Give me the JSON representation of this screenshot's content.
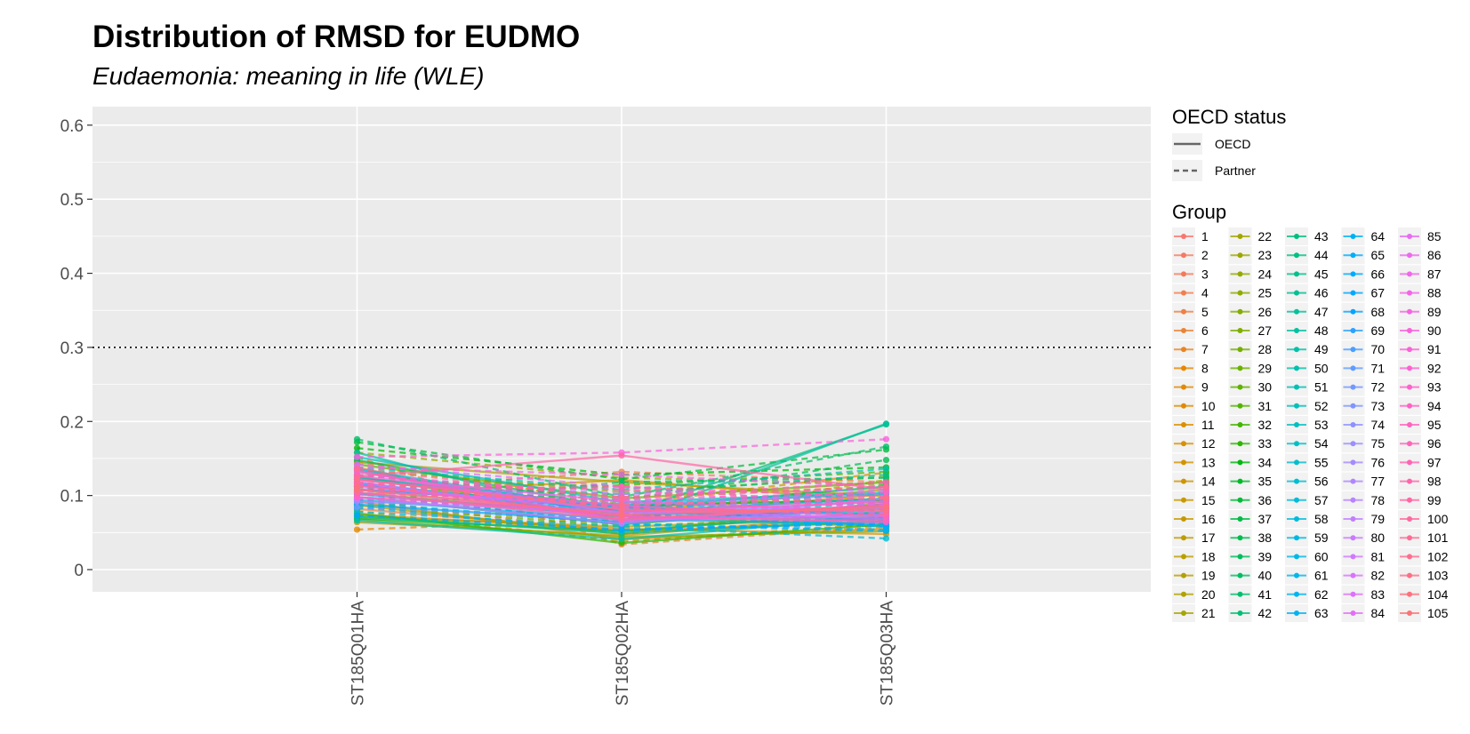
{
  "chart_data": {
    "type": "line",
    "title": "Distribution of RMSD for EUDMO",
    "subtitle": "Eudaemonia: meaning in life (WLE)",
    "xlabel": "",
    "ylabel": "",
    "categories": [
      "ST185Q01HA",
      "ST185Q02HA",
      "ST185Q03HA"
    ],
    "ylim": [
      -0.03,
      0.625
    ],
    "yticks": [
      0,
      0.1,
      0.2,
      0.3,
      0.4,
      0.5,
      0.6
    ],
    "ytick_labels": [
      "0",
      "0.1",
      "0.2",
      "0.3",
      "0.4",
      "0.5",
      "0.6"
    ],
    "reference_line": {
      "y": 0.3,
      "style": "dotted"
    },
    "grid": true,
    "background": "#EBEBEB",
    "legend_placement": "right",
    "legend": {
      "linetype_title": "OECD status",
      "linetype_entries": [
        {
          "label": "OECD",
          "style": "solid"
        },
        {
          "label": "Partner",
          "style": "dashed"
        }
      ],
      "group_title": "Group",
      "group_count": 105
    },
    "series": [
      {
        "name": "1",
        "status": "OECD",
        "values": [
          0.125,
          0.085,
          0.095
        ]
      },
      {
        "name": "2",
        "status": "Partner",
        "values": [
          0.095,
          0.048,
          0.072
        ]
      },
      {
        "name": "3",
        "status": "OECD",
        "values": [
          0.138,
          0.062,
          0.088
        ]
      },
      {
        "name": "4",
        "status": "Partner",
        "values": [
          0.108,
          0.132,
          0.118
        ]
      },
      {
        "name": "5",
        "status": "OECD",
        "values": [
          0.082,
          0.052,
          0.064
        ]
      },
      {
        "name": "6",
        "status": "Partner",
        "values": [
          0.152,
          0.034,
          0.058
        ]
      },
      {
        "name": "7",
        "status": "OECD",
        "values": [
          0.118,
          0.071,
          0.102
        ]
      },
      {
        "name": "8",
        "status": "Partner",
        "values": [
          0.054,
          0.068,
          0.081
        ]
      },
      {
        "name": "9",
        "status": "OECD",
        "values": [
          0.092,
          0.041,
          0.055
        ]
      },
      {
        "name": "10",
        "status": "Partner",
        "values": [
          0.128,
          0.098,
          0.112
        ]
      },
      {
        "name": "11",
        "status": "OECD",
        "values": [
          0.074,
          0.055,
          0.048
        ]
      },
      {
        "name": "12",
        "status": "Partner",
        "values": [
          0.146,
          0.088,
          0.131
        ]
      },
      {
        "name": "13",
        "status": "OECD",
        "values": [
          0.101,
          0.121,
          0.092
        ]
      },
      {
        "name": "14",
        "status": "Partner",
        "values": [
          0.088,
          0.062,
          0.098
        ]
      },
      {
        "name": "15",
        "status": "OECD",
        "values": [
          0.064,
          0.046,
          0.074
        ]
      },
      {
        "name": "16",
        "status": "Partner",
        "values": [
          0.122,
          0.112,
          0.085
        ]
      },
      {
        "name": "17",
        "status": "OECD",
        "values": [
          0.132,
          0.078,
          0.108
        ]
      },
      {
        "name": "18",
        "status": "Partner",
        "values": [
          0.079,
          0.038,
          0.062
        ]
      },
      {
        "name": "19",
        "status": "OECD",
        "values": [
          0.145,
          0.118,
          0.099
        ]
      },
      {
        "name": "20",
        "status": "Partner",
        "values": [
          0.098,
          0.066,
          0.121
        ]
      },
      {
        "name": "21",
        "status": "OECD",
        "values": [
          0.071,
          0.058,
          0.069
        ]
      },
      {
        "name": "22",
        "status": "Partner",
        "values": [
          0.116,
          0.092,
          0.078
        ]
      },
      {
        "name": "23",
        "status": "OECD",
        "values": [
          0.087,
          0.048,
          0.091
        ]
      },
      {
        "name": "24",
        "status": "Partner",
        "values": [
          0.158,
          0.124,
          0.115
        ]
      },
      {
        "name": "25",
        "status": "OECD",
        "values": [
          0.104,
          0.072,
          0.058
        ]
      },
      {
        "name": "26",
        "status": "Partner",
        "values": [
          0.135,
          0.105,
          0.125
        ]
      },
      {
        "name": "27",
        "status": "OECD",
        "values": [
          0.068,
          0.044,
          0.052
        ]
      },
      {
        "name": "28",
        "status": "Partner",
        "values": [
          0.112,
          0.081,
          0.104
        ]
      },
      {
        "name": "29",
        "status": "OECD",
        "values": [
          0.142,
          0.096,
          0.118
        ]
      },
      {
        "name": "30",
        "status": "Partner",
        "values": [
          0.085,
          0.059,
          0.071
        ]
      },
      {
        "name": "31",
        "status": "OECD",
        "values": [
          0.126,
          0.068,
          0.084
        ]
      },
      {
        "name": "32",
        "status": "Partner",
        "values": [
          0.094,
          0.114,
          0.132
        ]
      },
      {
        "name": "33",
        "status": "OECD",
        "values": [
          0.076,
          0.036,
          0.061
        ]
      },
      {
        "name": "34",
        "status": "Partner",
        "values": [
          0.164,
          0.128,
          0.138
        ]
      },
      {
        "name": "35",
        "status": "OECD",
        "values": [
          0.108,
          0.087,
          0.094
        ]
      },
      {
        "name": "36",
        "status": "Partner",
        "values": [
          0.172,
          0.122,
          0.162
        ]
      },
      {
        "name": "37",
        "status": "OECD",
        "values": [
          0.069,
          0.052,
          0.078
        ]
      },
      {
        "name": "38",
        "status": "Partner",
        "values": [
          0.128,
          0.094,
          0.148
        ]
      },
      {
        "name": "39",
        "status": "OECD",
        "values": [
          0.148,
          0.082,
          0.112
        ]
      },
      {
        "name": "40",
        "status": "Partner",
        "values": [
          0.176,
          0.098,
          0.166
        ]
      },
      {
        "name": "41",
        "status": "OECD",
        "values": [
          0.098,
          0.061,
          0.088
        ]
      },
      {
        "name": "42",
        "status": "Partner",
        "values": [
          0.082,
          0.118,
          0.124
        ]
      },
      {
        "name": "43",
        "status": "OECD",
        "values": [
          0.134,
          0.074,
          0.196
        ]
      },
      {
        "name": "44",
        "status": "Partner",
        "values": [
          0.112,
          0.102,
          0.128
        ]
      },
      {
        "name": "45",
        "status": "OECD",
        "values": [
          0.072,
          0.049,
          0.066
        ]
      },
      {
        "name": "46",
        "status": "Partner",
        "values": [
          0.122,
          0.088,
          0.102
        ]
      },
      {
        "name": "47",
        "status": "OECD",
        "values": [
          0.158,
          0.065,
          0.197
        ]
      },
      {
        "name": "48",
        "status": "Partner",
        "values": [
          0.096,
          0.076,
          0.114
        ]
      },
      {
        "name": "49",
        "status": "OECD",
        "values": [
          0.066,
          0.041,
          0.072
        ]
      },
      {
        "name": "50",
        "status": "Partner",
        "values": [
          0.138,
          0.108,
          0.136
        ]
      },
      {
        "name": "51",
        "status": "OECD",
        "values": [
          0.114,
          0.082,
          0.076
        ]
      },
      {
        "name": "52",
        "status": "Partner",
        "values": [
          0.086,
          0.066,
          0.092
        ]
      },
      {
        "name": "53",
        "status": "OECD",
        "values": [
          0.152,
          0.091,
          0.104
        ]
      },
      {
        "name": "54",
        "status": "Partner",
        "values": [
          0.102,
          0.072,
          0.068
        ]
      },
      {
        "name": "55",
        "status": "OECD",
        "values": [
          0.124,
          0.085,
          0.058
        ]
      },
      {
        "name": "56",
        "status": "Partner",
        "values": [
          0.078,
          0.058,
          0.042
        ]
      },
      {
        "name": "57",
        "status": "OECD",
        "values": [
          0.136,
          0.078,
          0.096
        ]
      },
      {
        "name": "58",
        "status": "Partner",
        "values": [
          0.091,
          0.062,
          0.054
        ]
      },
      {
        "name": "59",
        "status": "OECD",
        "values": [
          0.108,
          0.086,
          0.064
        ]
      },
      {
        "name": "60",
        "status": "Partner",
        "values": [
          0.118,
          0.074,
          0.082
        ]
      },
      {
        "name": "61",
        "status": "OECD",
        "values": [
          0.094,
          0.068,
          0.061
        ]
      },
      {
        "name": "62",
        "status": "Partner",
        "values": [
          0.084,
          0.052,
          0.066
        ]
      },
      {
        "name": "63",
        "status": "OECD",
        "values": [
          0.122,
          0.082,
          0.074
        ]
      },
      {
        "name": "64",
        "status": "Partner",
        "values": [
          0.104,
          0.061,
          0.052
        ]
      },
      {
        "name": "65",
        "status": "OECD",
        "values": [
          0.088,
          0.064,
          0.082
        ]
      },
      {
        "name": "66",
        "status": "Partner",
        "values": [
          0.112,
          0.076,
          0.058
        ]
      },
      {
        "name": "67",
        "status": "OECD",
        "values": [
          0.116,
          0.079,
          0.068
        ]
      },
      {
        "name": "68",
        "status": "Partner",
        "values": [
          0.073,
          0.054,
          0.062
        ]
      },
      {
        "name": "69",
        "status": "OECD",
        "values": [
          0.102,
          0.072,
          0.086
        ]
      },
      {
        "name": "70",
        "status": "Partner",
        "values": [
          0.092,
          0.082,
          0.094
        ]
      },
      {
        "name": "71",
        "status": "OECD",
        "values": [
          0.108,
          0.088,
          0.102
        ]
      },
      {
        "name": "72",
        "status": "Partner",
        "values": [
          0.084,
          0.068,
          0.078
        ]
      },
      {
        "name": "73",
        "status": "OECD",
        "values": [
          0.118,
          0.074,
          0.092
        ]
      },
      {
        "name": "74",
        "status": "Partner",
        "values": [
          0.096,
          0.092,
          0.088
        ]
      },
      {
        "name": "75",
        "status": "OECD",
        "values": [
          0.104,
          0.066,
          0.072
        ]
      },
      {
        "name": "76",
        "status": "Partner",
        "values": [
          0.122,
          0.084,
          0.106
        ]
      },
      {
        "name": "77",
        "status": "OECD",
        "values": [
          0.092,
          0.078,
          0.084
        ]
      },
      {
        "name": "78",
        "status": "Partner",
        "values": [
          0.114,
          0.096,
          0.076
        ]
      },
      {
        "name": "79",
        "status": "OECD",
        "values": [
          0.098,
          0.062,
          0.096
        ]
      },
      {
        "name": "80",
        "status": "Partner",
        "values": [
          0.128,
          0.102,
          0.108
        ]
      },
      {
        "name": "81",
        "status": "OECD",
        "values": [
          0.132,
          0.076,
          0.082
        ]
      },
      {
        "name": "82",
        "status": "Partner",
        "values": [
          0.106,
          0.088,
          0.098
        ]
      },
      {
        "name": "83",
        "status": "OECD",
        "values": [
          0.118,
          0.068,
          0.074
        ]
      },
      {
        "name": "84",
        "status": "Partner",
        "values": [
          0.142,
          0.112,
          0.086
        ]
      },
      {
        "name": "85",
        "status": "OECD",
        "values": [
          0.112,
          0.082,
          0.068
        ]
      },
      {
        "name": "86",
        "status": "Partner",
        "values": [
          0.096,
          0.074,
          0.092
        ]
      },
      {
        "name": "87",
        "status": "OECD",
        "values": [
          0.126,
          0.092,
          0.078
        ]
      },
      {
        "name": "88",
        "status": "Partner",
        "values": [
          0.138,
          0.128,
          0.112
        ]
      },
      {
        "name": "89",
        "status": "OECD",
        "values": [
          0.108,
          0.072,
          0.064
        ]
      },
      {
        "name": "90",
        "status": "Partner",
        "values": [
          0.152,
          0.158,
          0.176
        ]
      },
      {
        "name": "91",
        "status": "OECD",
        "values": [
          0.121,
          0.086,
          0.072
        ]
      },
      {
        "name": "92",
        "status": "Partner",
        "values": [
          0.102,
          0.094,
          0.104
        ]
      },
      {
        "name": "93",
        "status": "OECD",
        "values": [
          0.134,
          0.066,
          0.088
        ]
      },
      {
        "name": "94",
        "status": "Partner",
        "values": [
          0.116,
          0.108,
          0.082
        ]
      },
      {
        "name": "95",
        "status": "OECD",
        "values": [
          0.098,
          0.078,
          0.092
        ]
      },
      {
        "name": "96",
        "status": "Partner",
        "values": [
          0.128,
          0.098,
          0.118
        ]
      },
      {
        "name": "97",
        "status": "OECD",
        "values": [
          0.114,
          0.072,
          0.066
        ]
      },
      {
        "name": "98",
        "status": "Partner",
        "values": [
          0.106,
          0.112,
          0.098
        ]
      },
      {
        "name": "99",
        "status": "OECD",
        "values": [
          0.126,
          0.154,
          0.108
        ]
      },
      {
        "name": "100",
        "status": "Partner",
        "values": [
          0.118,
          0.084,
          0.074
        ]
      },
      {
        "name": "101",
        "status": "OECD",
        "values": [
          0.104,
          0.068,
          0.086
        ]
      },
      {
        "name": "102",
        "status": "Partner",
        "values": [
          0.136,
          0.096,
          0.112
        ]
      },
      {
        "name": "103",
        "status": "OECD",
        "values": [
          0.122,
          0.081,
          0.079
        ]
      },
      {
        "name": "104",
        "status": "Partner",
        "values": [
          0.112,
          0.088,
          0.096
        ]
      },
      {
        "name": "105",
        "status": "OECD",
        "values": [
          0.108,
          0.074,
          0.084
        ]
      }
    ]
  }
}
